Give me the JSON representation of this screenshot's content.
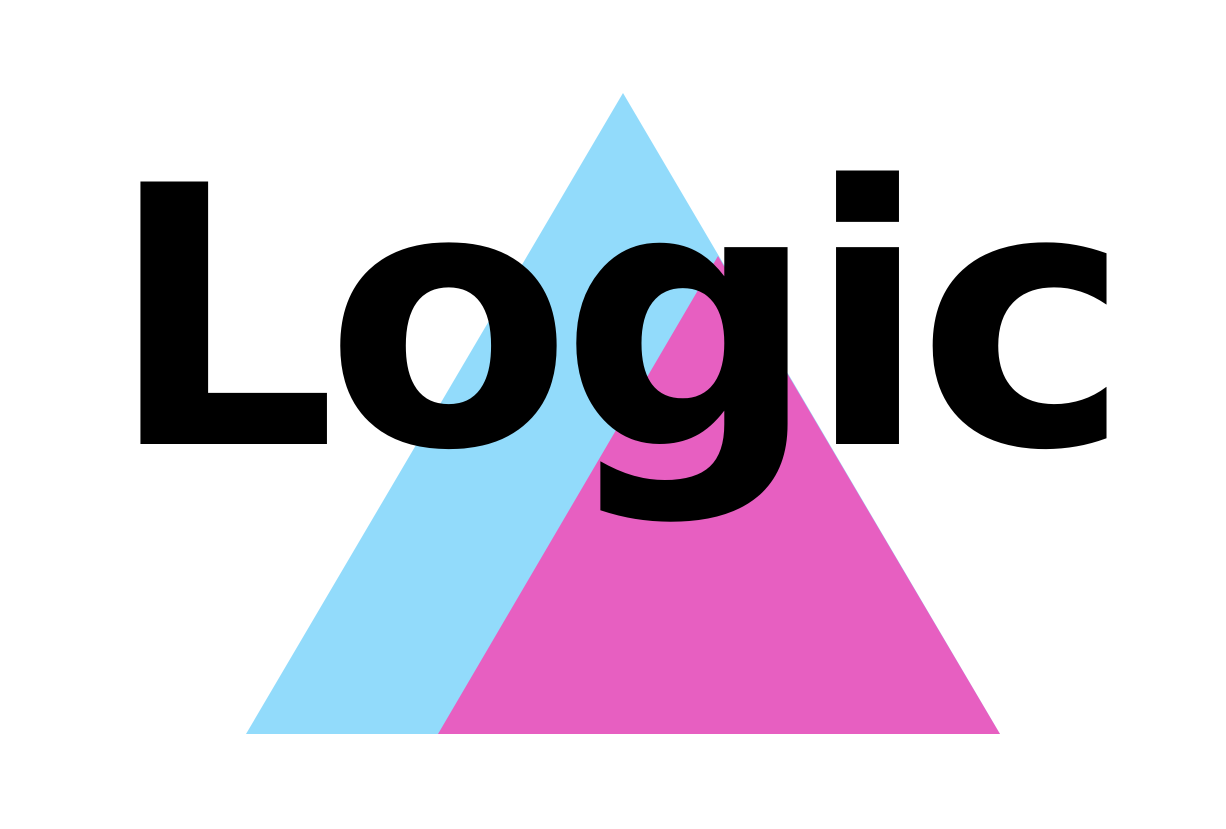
{
  "logo": {
    "word": "Logic",
    "colors": {
      "background": "#ffffff",
      "triangle_back": "#92dbfb",
      "triangle_front": "#e75fc1",
      "text": "#000000"
    }
  }
}
